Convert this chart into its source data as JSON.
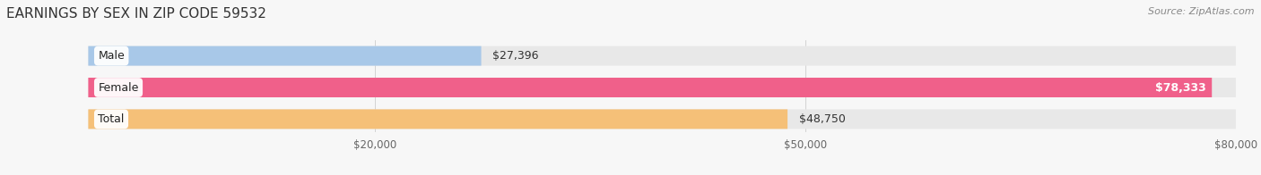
{
  "title": "EARNINGS BY SEX IN ZIP CODE 59532",
  "source": "Source: ZipAtlas.com",
  "categories": [
    "Male",
    "Female",
    "Total"
  ],
  "values": [
    27396,
    78333,
    48750
  ],
  "bar_colors": [
    "#a8c8e8",
    "#f0608a",
    "#f5c078"
  ],
  "bar_labels": [
    "$27,396",
    "$78,333",
    "$48,750"
  ],
  "label_inside": [
    false,
    true,
    false
  ],
  "x_min": 0,
  "x_max": 80000,
  "x_ticks": [
    20000,
    50000,
    80000
  ],
  "x_tick_labels": [
    "$20,000",
    "$50,000",
    "$80,000"
  ],
  "bg_color": "#f7f7f7",
  "bar_bg_color": "#e8e8e8",
  "title_fontsize": 11,
  "source_fontsize": 8,
  "label_fontsize": 9,
  "tick_fontsize": 8.5,
  "cat_fontsize": 9,
  "figsize": [
    14.06,
    1.96
  ],
  "dpi": 100
}
